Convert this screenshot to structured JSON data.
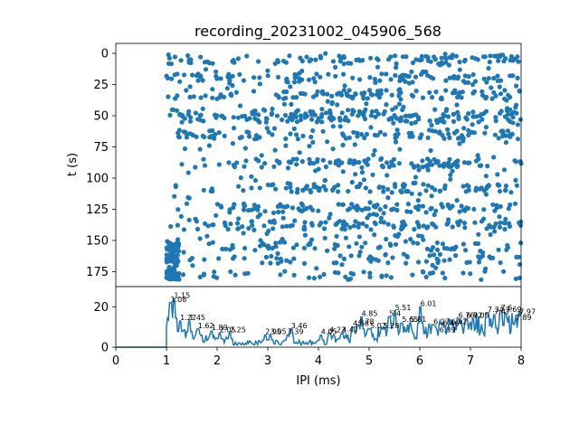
{
  "chart_data": [
    {
      "type": "scatter",
      "title": "recording_20231002_045906_568",
      "xlabel": "",
      "ylabel": "t (s)",
      "xlim": [
        0,
        8
      ],
      "ylim": [
        187,
        -8
      ],
      "y_inverted": true,
      "ytick_labels": [
        "0",
        "25",
        "50",
        "75",
        "100",
        "125",
        "150",
        "175"
      ],
      "ytick_values": [
        0,
        25,
        50,
        75,
        100,
        125,
        150,
        175
      ],
      "color": "#1f77b4",
      "x_range_of_points": [
        1.0,
        8.0
      ],
      "dense_bands_t": [
        5,
        20,
        33,
        48,
        52,
        65,
        88,
        108,
        124,
        138,
        155,
        165,
        178
      ]
    },
    {
      "type": "line",
      "xlabel": "IPI (ms)",
      "ylabel": "",
      "xlim": [
        0,
        8
      ],
      "ylim": [
        0,
        30
      ],
      "xtick_labels": [
        "0",
        "1",
        "2",
        "3",
        "4",
        "5",
        "6",
        "7",
        "8"
      ],
      "xtick_values": [
        0,
        1,
        2,
        3,
        4,
        5,
        6,
        7,
        8
      ],
      "ytick_labels": [
        "0",
        "20"
      ],
      "ytick_values": [
        0,
        20
      ],
      "color": "#1f77b4",
      "peaks": [
        {
          "x": 1.15,
          "y": 24,
          "label": "1.15"
        },
        {
          "x": 1.08,
          "y": 22,
          "label": "1.08"
        },
        {
          "x": 1.27,
          "y": 13,
          "label": "1.27"
        },
        {
          "x": 1.45,
          "y": 13,
          "label": "1.45"
        },
        {
          "x": 1.62,
          "y": 9,
          "label": "1.62"
        },
        {
          "x": 1.89,
          "y": 8,
          "label": "1.89"
        },
        {
          "x": 2.05,
          "y": 7,
          "label": "2.05"
        },
        {
          "x": 2.25,
          "y": 7,
          "label": "2.25"
        },
        {
          "x": 2.95,
          "y": 6,
          "label": "2.95"
        },
        {
          "x": 3.05,
          "y": 6,
          "label": "3.05"
        },
        {
          "x": 3.46,
          "y": 9,
          "label": "3.46"
        },
        {
          "x": 3.39,
          "y": 6,
          "label": "3.39"
        },
        {
          "x": 4.05,
          "y": 6,
          "label": "4.05"
        },
        {
          "x": 4.22,
          "y": 7,
          "label": "4.22"
        },
        {
          "x": 4.47,
          "y": 7,
          "label": "4.47"
        },
        {
          "x": 4.68,
          "y": 10,
          "label": "4.68"
        },
        {
          "x": 4.78,
          "y": 11,
          "label": "4.78"
        },
        {
          "x": 4.85,
          "y": 15,
          "label": "4.85"
        },
        {
          "x": 5.02,
          "y": 9,
          "label": "5.02"
        },
        {
          "x": 5.28,
          "y": 9,
          "label": "5.28"
        },
        {
          "x": 5.4,
          "y": 15,
          "label": "5.4"
        },
        {
          "x": 5.51,
          "y": 18,
          "label": "5.51"
        },
        {
          "x": 5.65,
          "y": 12,
          "label": "5.65"
        },
        {
          "x": 5.81,
          "y": 12,
          "label": "5.81"
        },
        {
          "x": 6.01,
          "y": 20,
          "label": "6.01"
        },
        {
          "x": 6.27,
          "y": 11,
          "label": "6.27"
        },
        {
          "x": 6.46,
          "y": 10,
          "label": "6.46"
        },
        {
          "x": 6.39,
          "y": 7,
          "label": "6.39"
        },
        {
          "x": 6.62,
          "y": 11,
          "label": "6.62"
        },
        {
          "x": 6.76,
          "y": 14,
          "label": "6.76"
        },
        {
          "x": 6.92,
          "y": 14,
          "label": "6.92"
        },
        {
          "x": 7.05,
          "y": 14,
          "label": "7.05"
        },
        {
          "x": 7.34,
          "y": 17,
          "label": "7.34"
        },
        {
          "x": 7.47,
          "y": 16,
          "label": "7.47"
        },
        {
          "x": 7.6,
          "y": 18,
          "label": "7.6"
        },
        {
          "x": 7.69,
          "y": 17,
          "label": "7.69"
        },
        {
          "x": 7.89,
          "y": 13,
          "label": "7.89"
        },
        {
          "x": 7.97,
          "y": 16,
          "label": "7.97"
        }
      ]
    }
  ]
}
